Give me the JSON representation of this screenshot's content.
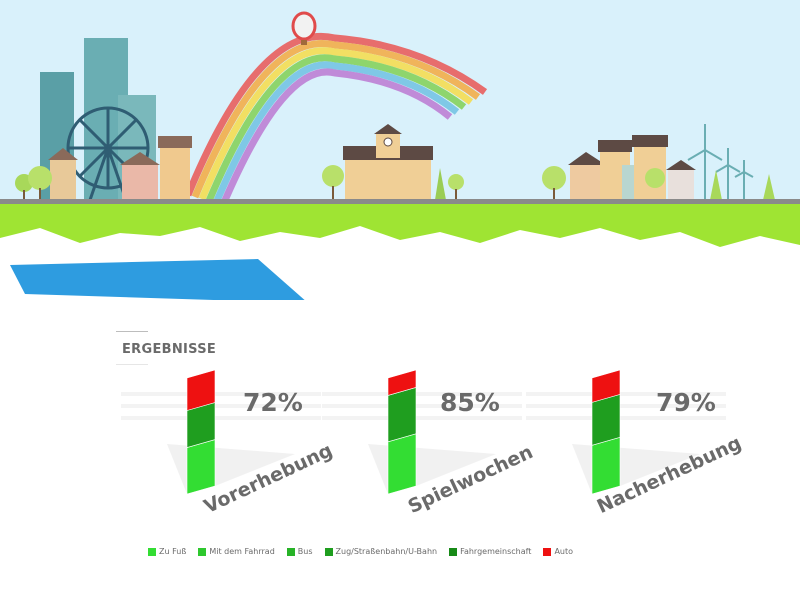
{
  "chart_data": {
    "type": "bar",
    "stacked": true,
    "title": "ERGEBNISSE",
    "categories": [
      "Vorerhebung",
      "Spielwochen",
      "Nacherhebung"
    ],
    "totals_label": [
      "72%",
      "85%",
      "79%"
    ],
    "series": [
      {
        "name": "Zu Fuß",
        "color": "#33dd33",
        "values": [
          40,
          45,
          42
        ]
      },
      {
        "name": "Mit dem Fahrrad",
        "color": "#2ec82e",
        "values": [
          0,
          0,
          0
        ]
      },
      {
        "name": "Bus",
        "color": "#27b327",
        "values": [
          0,
          0,
          0
        ]
      },
      {
        "name": "Zug/Straßenbahn/U-Bahn",
        "color": "#1f9e1f",
        "values": [
          32,
          40,
          37
        ]
      },
      {
        "name": "Fahrgemeinschaft",
        "color": "#178a17",
        "values": [
          0,
          0,
          0
        ]
      },
      {
        "name": "Auto",
        "color": "#ee1111",
        "values": [
          28,
          15,
          21
        ]
      }
    ],
    "ylim": [
      0,
      100
    ],
    "legend_position": "bottom"
  }
}
